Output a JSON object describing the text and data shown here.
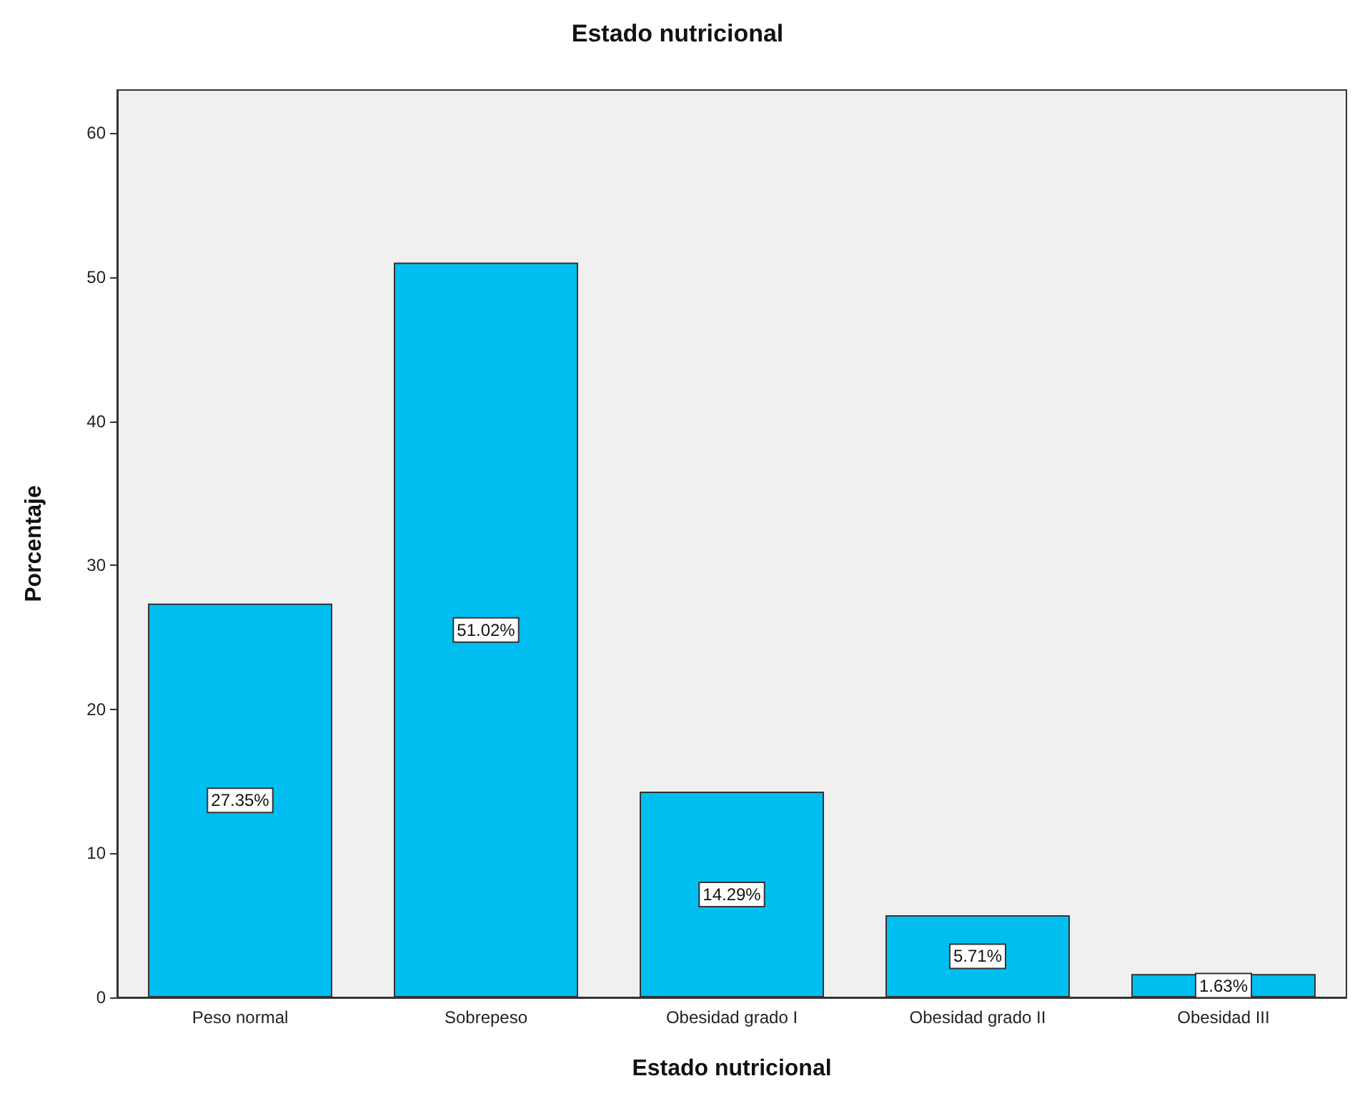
{
  "chart_data": {
    "type": "bar",
    "title": "Estado nutricional",
    "xlabel": "Estado nutricional",
    "ylabel": "Porcentaje",
    "categories": [
      "Peso normal",
      "Sobrepeso",
      "Obesidad grado I",
      "Obesidad grado II",
      "Obesidad III"
    ],
    "values": [
      27.35,
      51.02,
      14.29,
      5.71,
      1.63
    ],
    "value_labels": [
      "27.35%",
      "51.02%",
      "14.29%",
      "5.71%",
      "1.63%"
    ],
    "color": "#00bff0",
    "ylim": [
      0,
      63
    ],
    "yticks": [
      0,
      10,
      20,
      30,
      40,
      50,
      60
    ]
  }
}
